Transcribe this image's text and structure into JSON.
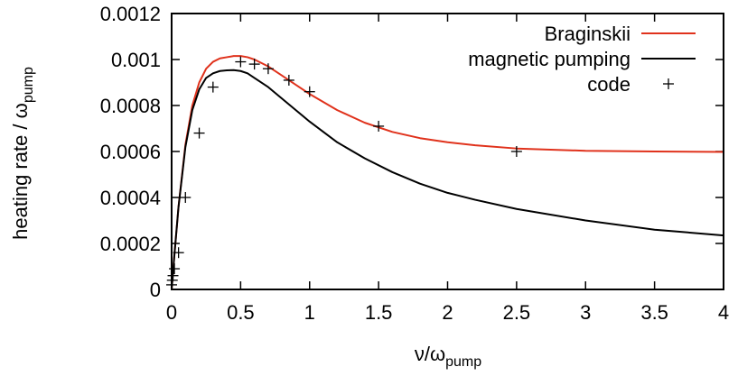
{
  "chart_data": {
    "type": "line",
    "xlabel": {
      "base": "ν/ω",
      "sub": "pump"
    },
    "ylabel": {
      "base": "heating rate / ω",
      "sub": "pump"
    },
    "xlim": [
      0,
      4
    ],
    "ylim": [
      0,
      0.0012
    ],
    "xticks": [
      0,
      0.5,
      1,
      1.5,
      2,
      2.5,
      3,
      3.5,
      4
    ],
    "xtick_labels": [
      "0",
      "0.5",
      "1",
      "1.5",
      "2",
      "2.5",
      "3",
      "3.5",
      "4"
    ],
    "yticks": [
      0,
      0.0002,
      0.0004,
      0.0006,
      0.0008,
      0.001,
      0.0012
    ],
    "ytick_labels": [
      "0",
      "0.0002",
      "0.0004",
      "0.0006",
      "0.0008",
      "0.001",
      "0.0012"
    ],
    "grid": false,
    "legend": "top-right",
    "series": [
      {
        "name": "Braginskii",
        "style": "line",
        "color": "#e0321c",
        "x": [
          0,
          0.02,
          0.05,
          0.1,
          0.15,
          0.2,
          0.25,
          0.3,
          0.35,
          0.4,
          0.45,
          0.5,
          0.55,
          0.6,
          0.7,
          0.8,
          0.9,
          1.0,
          1.2,
          1.4,
          1.6,
          1.8,
          2.0,
          2.2,
          2.5,
          3.0,
          3.5,
          4.0
        ],
        "y": [
          0,
          0.00015,
          0.00036,
          0.00063,
          0.0008,
          0.0009,
          0.00096,
          0.00099,
          0.001005,
          0.00101,
          0.001015,
          0.001015,
          0.00101,
          0.001,
          0.00097,
          0.00093,
          0.00089,
          0.00085,
          0.00078,
          0.000725,
          0.000685,
          0.000658,
          0.00064,
          0.000627,
          0.000613,
          0.000603,
          0.0006,
          0.000598
        ]
      },
      {
        "name": "magnetic pumping",
        "style": "line",
        "color": "#000000",
        "x": [
          0,
          0.02,
          0.05,
          0.1,
          0.15,
          0.2,
          0.25,
          0.3,
          0.35,
          0.4,
          0.45,
          0.5,
          0.55,
          0.6,
          0.7,
          0.8,
          0.9,
          1.0,
          1.2,
          1.4,
          1.6,
          1.8,
          2.0,
          2.2,
          2.5,
          3.0,
          3.5,
          4.0
        ],
        "y": [
          0,
          0.00015,
          0.00036,
          0.00062,
          0.00078,
          0.00087,
          0.00092,
          0.00094,
          0.00095,
          0.000953,
          0.000954,
          0.00095,
          0.00094,
          0.00092,
          0.00088,
          0.00083,
          0.00078,
          0.00073,
          0.00064,
          0.00057,
          0.00051,
          0.00046,
          0.00042,
          0.00039,
          0.00035,
          0.0003,
          0.00026,
          0.000235
        ]
      },
      {
        "name": "code",
        "style": "points",
        "color": "#000000",
        "x": [
          0,
          0.005,
          0.01,
          0.02,
          0.05,
          0.1,
          0.2,
          0.3,
          0.5,
          0.6,
          0.7,
          0.85,
          1.0,
          1.5,
          2.5
        ],
        "y": [
          2e-05,
          4e-05,
          6e-05,
          9e-05,
          0.00016,
          0.0004,
          0.00068,
          0.00088,
          0.00099,
          0.00098,
          0.00096,
          0.00091,
          0.00086,
          0.00071,
          0.0006
        ]
      }
    ]
  }
}
